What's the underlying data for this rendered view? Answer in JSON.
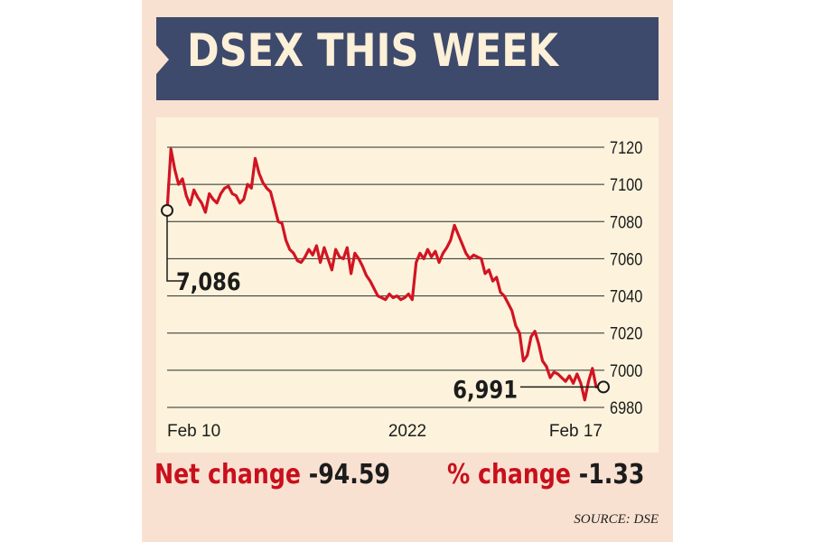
{
  "header": {
    "title": "DSEX THIS WEEK"
  },
  "footer": {
    "net_change_label": "Net change",
    "net_change_value": "-94.59",
    "pct_change_label": "% change",
    "pct_change_value": "-1.33",
    "source": "SOURCE: DSE"
  },
  "colors": {
    "line": "#d21423",
    "header_bg": "#3d4a6b",
    "card_bg": "#f9e1d1",
    "plot_bg": "#fdf3dc",
    "accent_text": "#c8101c"
  },
  "chart_data": {
    "type": "line",
    "title": "DSEX THIS WEEK",
    "ylim": [
      6980,
      7120
    ],
    "yticks": [
      7120,
      7100,
      7080,
      7060,
      7040,
      7020,
      7000,
      6980
    ],
    "x_tick_labels": [
      "Feb 10",
      "2022",
      "Feb 17"
    ],
    "grid": "horizontal",
    "annotations": [
      {
        "label": "7,086",
        "y": 7086,
        "point": "start"
      },
      {
        "label": "6,991",
        "y": 6991,
        "point": "end"
      }
    ],
    "series": [
      {
        "values": [
          7086,
          7119,
          7108,
          7100,
          7103,
          7094,
          7089,
          7097,
          7093,
          7090,
          7085,
          7095,
          7092,
          7090,
          7095,
          7098,
          7099,
          7095,
          7094,
          7090,
          7092,
          7100,
          7098,
          7114,
          7106,
          7101,
          7098,
          7096,
          7088,
          7080,
          7079,
          7070,
          7065,
          7063,
          7059,
          7058,
          7061,
          7065,
          7062,
          7067,
          7058,
          7066,
          7060,
          7054,
          7065,
          7061,
          7060,
          7066,
          7052,
          7063,
          7060,
          7056,
          7051,
          7048,
          7044,
          7040,
          7039,
          7038,
          7041,
          7039,
          7040,
          7038,
          7039,
          7041,
          7038,
          7058,
          7063,
          7060,
          7065,
          7061,
          7064,
          7058,
          7063,
          7066,
          7070,
          7078,
          7073,
          7068,
          7063,
          7060,
          7062,
          7061,
          7060,
          7052,
          7054,
          7048,
          7050,
          7042,
          7040,
          7036,
          7032,
          7024,
          7020,
          7005,
          7008,
          7018,
          7021,
          7014,
          7005,
          7002,
          6996,
          6999,
          6998,
          6996,
          6994,
          6997,
          6993,
          6998,
          6993,
          6984,
          6994,
          7001,
          6991
        ]
      }
    ]
  }
}
